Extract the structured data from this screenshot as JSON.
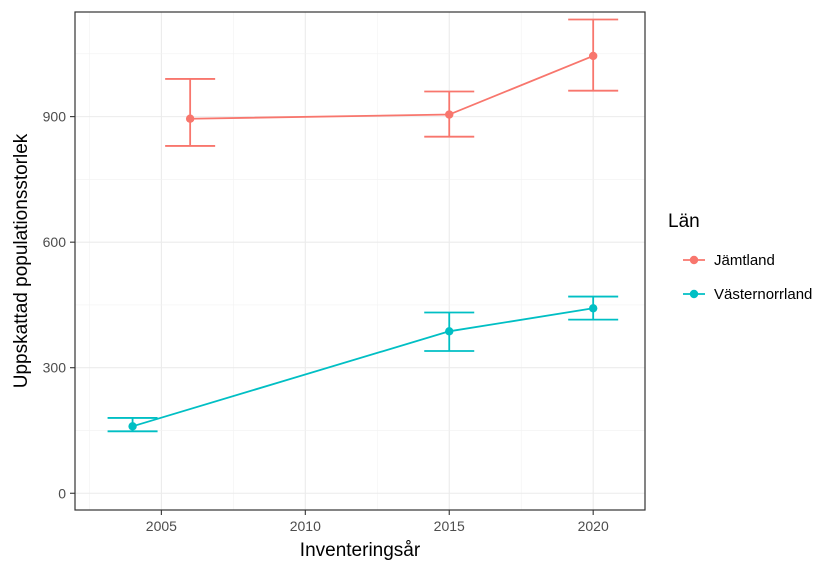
{
  "chart_data": {
    "type": "line",
    "title": "",
    "xlabel": "Inventeringsår",
    "ylabel": "Uppskattad populationsstorlek",
    "xlim": [
      2002.0,
      2021.8
    ],
    "ylim": [
      -40,
      1150
    ],
    "x_ticks": [
      2005,
      2010,
      2015,
      2020
    ],
    "y_ticks": [
      0,
      300,
      600,
      900
    ],
    "grid": true,
    "legend": {
      "title": "Län",
      "position": "right"
    },
    "series": [
      {
        "name": "Jämtland",
        "color": "#F8766D",
        "x": [
          2006,
          2015,
          2020
        ],
        "y": [
          895,
          905,
          1045
        ],
        "lower": [
          830,
          852,
          962
        ],
        "upper": [
          990,
          960,
          1132
        ]
      },
      {
        "name": "Västernorrland",
        "color": "#00BFC4",
        "x": [
          2004,
          2015,
          2020
        ],
        "y": [
          160,
          387,
          442
        ],
        "lower": [
          148,
          340,
          415
        ],
        "upper": [
          180,
          432,
          470
        ]
      }
    ]
  }
}
